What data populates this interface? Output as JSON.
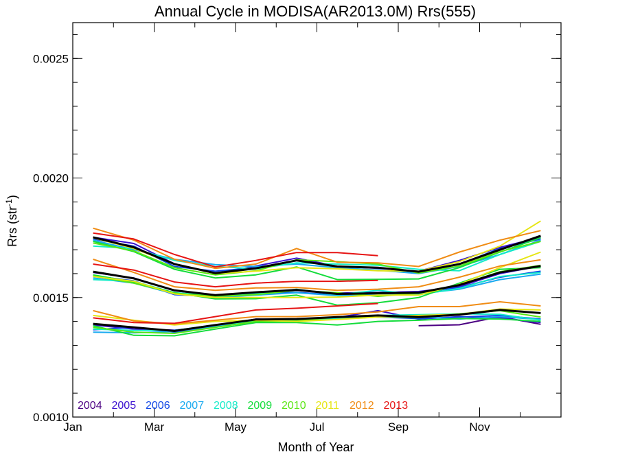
{
  "chart_data": {
    "type": "line",
    "title": "Annual Cycle in MODISA(AR2013.0M) Rrs(555)",
    "xlabel": "Month of Year",
    "ylabel_main": "Rrs (str",
    "ylabel_sup": "-1",
    "ylabel_tail": ")",
    "xlim": [
      0,
      12
    ],
    "ylim": [
      0.001,
      0.00265
    ],
    "x_ticks": [
      {
        "value": 0,
        "label": "Jan"
      },
      {
        "value": 2,
        "label": "Mar"
      },
      {
        "value": 4,
        "label": "May"
      },
      {
        "value": 6,
        "label": "Jul"
      },
      {
        "value": 8,
        "label": "Sep"
      },
      {
        "value": 10,
        "label": "Nov"
      }
    ],
    "x_minor_ticks": [
      1,
      3,
      5,
      7,
      9,
      11
    ],
    "y_ticks": [
      {
        "value": 0.001,
        "label": "0.0010"
      },
      {
        "value": 0.0015,
        "label": "0.0015"
      },
      {
        "value": 0.002,
        "label": "0.0020"
      },
      {
        "value": 0.0025,
        "label": "0.0025"
      }
    ],
    "y_minor_step": 0.0001,
    "x": [
      0.5,
      1.5,
      2.5,
      3.5,
      4.5,
      5.5,
      6.5,
      7.5,
      8.5,
      9.5,
      10.5,
      11.5
    ],
    "legend_position": "bottom-left",
    "series": [
      {
        "name": "2004",
        "color": "#4b0082",
        "upper": [
          null,
          null,
          null,
          null,
          null,
          null,
          null,
          null,
          null,
          null,
          null,
          null
        ],
        "middle": [
          null,
          null,
          null,
          null,
          null,
          null,
          null,
          null,
          null,
          null,
          null,
          null
        ],
        "lower": [
          null,
          null,
          null,
          null,
          null,
          null,
          null,
          null,
          0.001382,
          0.001386,
          0.00142,
          0.001388
        ]
      },
      {
        "name": "2005",
        "color": "#3a10cf",
        "upper": [
          0.001752,
          0.001726,
          0.001641,
          0.0016,
          0.001632,
          0.001665,
          0.001631,
          0.001622,
          0.00161,
          0.001655,
          0.00171,
          0.001752
        ],
        "middle": [
          0.001605,
          0.001582,
          0.001528,
          0.00151,
          0.00152,
          0.00153,
          0.001519,
          0.001521,
          0.001525,
          0.001546,
          0.0016,
          0.001632
        ],
        "lower": [
          0.001385,
          0.001368,
          0.001364,
          0.00138,
          0.00141,
          0.001408,
          0.001416,
          0.001445,
          0.00141,
          0.00142,
          0.001415,
          0.001395
        ]
      },
      {
        "name": "2006",
        "color": "#0f46e6",
        "upper": [
          0.001745,
          0.001715,
          0.00163,
          0.00161,
          0.001625,
          0.001655,
          0.001629,
          0.001625,
          0.001605,
          0.00164,
          0.001705,
          0.001745
        ],
        "middle": [
          0.00159,
          0.00157,
          0.001512,
          0.001505,
          0.001517,
          0.001522,
          0.00151,
          0.001512,
          0.00152,
          0.001542,
          0.001585,
          0.00161
        ],
        "lower": [
          0.001365,
          0.001375,
          0.001355,
          0.001378,
          0.001404,
          0.00141,
          0.001412,
          0.001418,
          0.001412,
          0.001418,
          0.001425,
          0.00141
        ]
      },
      {
        "name": "2007",
        "color": "#19aaf0",
        "upper": [
          0.00174,
          0.0017,
          0.00166,
          0.001638,
          0.00163,
          0.00164,
          0.001625,
          0.001615,
          0.0016,
          0.00163,
          0.00168,
          0.00174
        ],
        "middle": [
          0.001582,
          0.00156,
          0.001515,
          0.0015,
          0.00151,
          0.00152,
          0.001508,
          0.00151,
          0.001515,
          0.001535,
          0.001575,
          0.001598
        ],
        "lower": [
          0.001355,
          0.001352,
          0.001358,
          0.00138,
          0.001398,
          0.001405,
          0.00141,
          0.001418,
          0.00142,
          0.00141,
          0.00142,
          0.001408
        ]
      },
      {
        "name": "2008",
        "color": "#14ebc8",
        "upper": [
          0.001715,
          0.001705,
          0.001655,
          0.00163,
          0.00162,
          0.001645,
          0.00164,
          0.001635,
          0.001618,
          0.001612,
          0.00168,
          0.001735
        ],
        "middle": [
          0.001575,
          0.001568,
          0.00152,
          0.001508,
          0.001515,
          0.001535,
          0.001512,
          0.00153,
          0.001512,
          0.001538,
          0.001588,
          0.001605
        ],
        "lower": [
          0.001368,
          0.001362,
          0.001362,
          0.001386,
          0.0014,
          0.001408,
          0.001412,
          0.001425,
          0.001428,
          0.001432,
          0.00143,
          0.001405
        ]
      },
      {
        "name": "2009",
        "color": "#14dc3c",
        "upper": [
          0.001735,
          0.001692,
          0.001618,
          0.001582,
          0.001595,
          0.001628,
          0.001575,
          0.001576,
          0.001578,
          0.001625,
          0.00169,
          0.00175
        ],
        "middle": [
          0.001595,
          0.001565,
          0.00152,
          0.001494,
          0.001495,
          0.00151,
          0.001468,
          0.001478,
          0.0015,
          0.00156,
          0.001618,
          0.001625
        ],
        "lower": [
          0.001382,
          0.001342,
          0.00134,
          0.001368,
          0.001395,
          0.001395,
          0.001385,
          0.0014,
          0.001405,
          0.001412,
          0.00141,
          0.0014
        ]
      },
      {
        "name": "2010",
        "color": "#5ae614",
        "upper": [
          0.001728,
          0.001695,
          0.001625,
          0.001595,
          0.001612,
          0.001658,
          0.00165,
          0.00164,
          0.001602,
          0.001632,
          0.001692,
          0.001735
        ],
        "middle": [
          0.00159,
          0.00156,
          0.001518,
          0.001505,
          0.001512,
          0.00153,
          0.00152,
          0.001505,
          0.001518,
          0.001552,
          0.001608,
          0.001635
        ],
        "lower": [
          0.001375,
          0.001355,
          0.00135,
          0.001375,
          0.0014,
          0.001402,
          0.001418,
          0.00142,
          0.001416,
          0.001432,
          0.001445,
          0.001418
        ]
      },
      {
        "name": "2011",
        "color": "#e6e614",
        "upper": [
          0.00175,
          0.001705,
          0.00164,
          0.0016,
          0.00161,
          0.001625,
          0.00162,
          0.001612,
          0.00161,
          0.00165,
          0.001715,
          0.00182
        ],
        "middle": [
          0.001588,
          0.001568,
          0.001515,
          0.0015,
          0.0015,
          0.0015,
          0.001502,
          0.00151,
          0.00151,
          0.001555,
          0.001625,
          0.00169
        ],
        "lower": [
          0.001425,
          0.001405,
          0.001385,
          0.0014,
          0.001405,
          0.0014,
          0.001408,
          0.001418,
          0.001425,
          0.00143,
          0.001452,
          0.001448
        ]
      },
      {
        "name": "2012",
        "color": "#f08c14",
        "upper": [
          0.00179,
          0.00174,
          0.00166,
          0.001622,
          0.00164,
          0.001705,
          0.001648,
          0.001645,
          0.00163,
          0.00169,
          0.00174,
          0.00178
        ],
        "middle": [
          0.00166,
          0.001605,
          0.001545,
          0.00153,
          0.00154,
          0.001542,
          0.00153,
          0.001535,
          0.001545,
          0.001585,
          0.001632,
          0.001658
        ],
        "lower": [
          0.001445,
          0.001402,
          0.00139,
          0.001405,
          0.00142,
          0.00142,
          0.001428,
          0.00144,
          0.001462,
          0.001462,
          0.001482,
          0.001465
        ]
      },
      {
        "name": "2013",
        "color": "#e61414",
        "upper": [
          0.00177,
          0.001745,
          0.00168,
          0.001628,
          0.001655,
          0.001688,
          0.001688,
          0.001675,
          null,
          null,
          null,
          null
        ],
        "middle": [
          0.00164,
          0.001615,
          0.001565,
          0.001545,
          0.00156,
          0.001568,
          0.001568,
          0.001572,
          null,
          null,
          null,
          null
        ],
        "lower": [
          0.001415,
          0.001395,
          0.001392,
          0.00142,
          0.001448,
          0.001455,
          0.001465,
          0.001475,
          null,
          null,
          null,
          null
        ]
      }
    ],
    "climatology": {
      "color": "#000000",
      "upper": [
        0.001752,
        0.00171,
        0.00164,
        0.001602,
        0.001622,
        0.001655,
        0.00163,
        0.001625,
        0.001608,
        0.00164,
        0.0017,
        0.001758
      ],
      "middle": [
        0.001608,
        0.00158,
        0.00153,
        0.00151,
        0.001522,
        0.001532,
        0.001515,
        0.001518,
        0.00152,
        0.001552,
        0.001605,
        0.001632
      ],
      "lower": [
        0.00139,
        0.001375,
        0.00136,
        0.001385,
        0.001408,
        0.00141,
        0.001418,
        0.001425,
        0.001418,
        0.001428,
        0.001448,
        0.001435
      ]
    }
  }
}
